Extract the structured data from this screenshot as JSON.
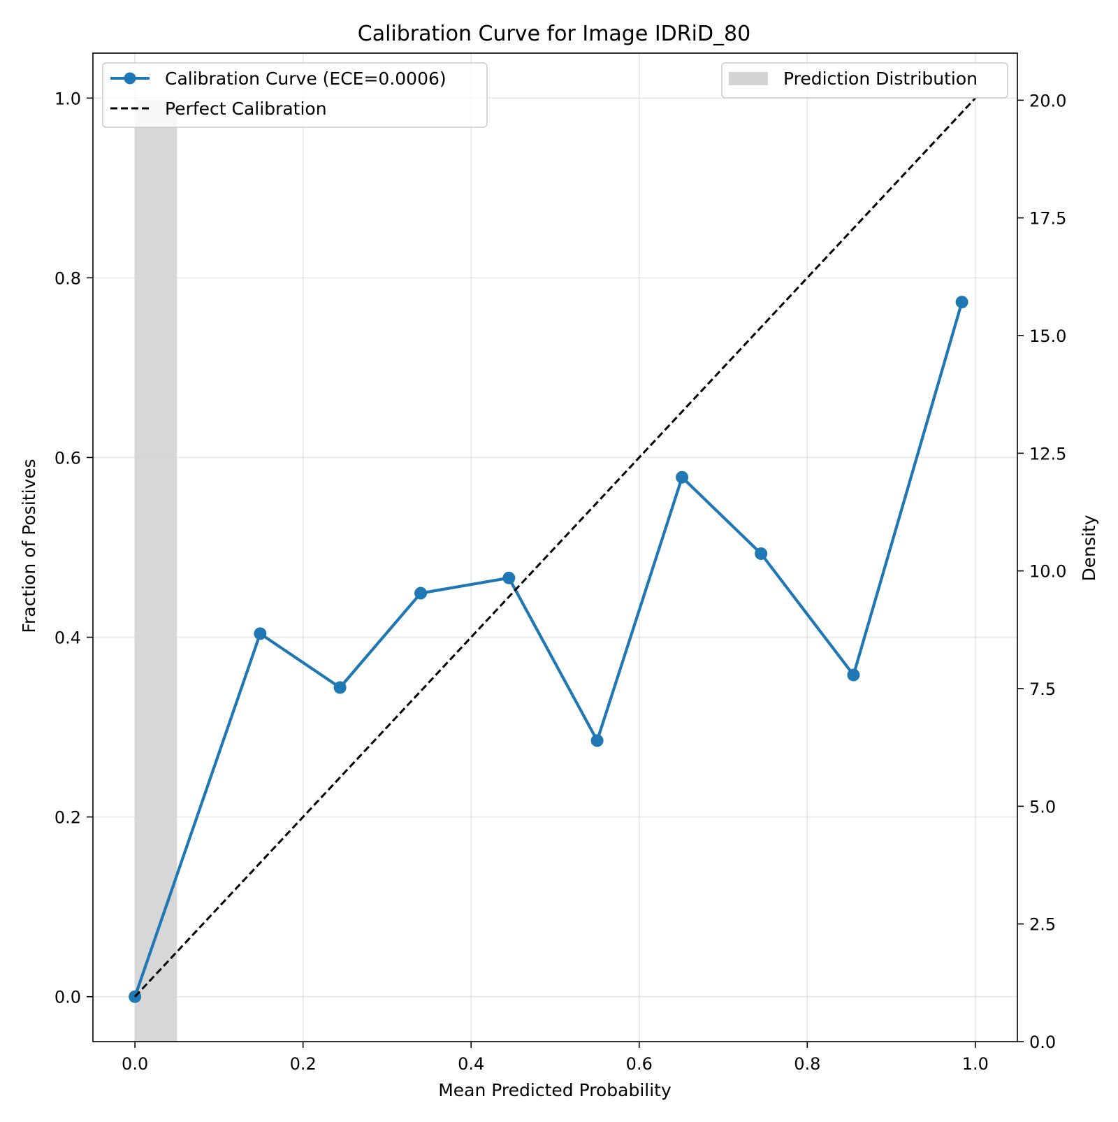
{
  "chart_data": {
    "type": "line",
    "title": "Calibration Curve for Image IDRiD_80",
    "xlabel": "Mean Predicted Probability",
    "ylabel": "Fraction of Positives",
    "y2label": "Density",
    "xlim": [
      -0.05,
      1.05
    ],
    "ylim": [
      -0.05,
      1.05
    ],
    "y2lim": [
      0.0,
      21.0
    ],
    "x_ticks": [
      0.0,
      0.2,
      0.4,
      0.6,
      0.8,
      1.0
    ],
    "x_tick_labels": [
      "0.0",
      "0.2",
      "0.4",
      "0.6",
      "0.8",
      "1.0"
    ],
    "y_ticks": [
      0.0,
      0.2,
      0.4,
      0.6,
      0.8,
      1.0
    ],
    "y_tick_labels": [
      "0.0",
      "0.2",
      "0.4",
      "0.6",
      "0.8",
      "1.0"
    ],
    "y2_ticks": [
      0.0,
      2.5,
      5.0,
      7.5,
      10.0,
      12.5,
      15.0,
      17.5,
      20.0
    ],
    "y2_tick_labels": [
      "0.0",
      "2.5",
      "5.0",
      "7.5",
      "10.0",
      "12.5",
      "15.0",
      "17.5",
      "20.0"
    ],
    "grid": true,
    "series": [
      {
        "name": "Calibration Curve (ECE=0.0006)",
        "color": "#1f77b4",
        "marker": "circle",
        "x": [
          0.0,
          0.149,
          0.244,
          0.34,
          0.445,
          0.55,
          0.651,
          0.745,
          0.855,
          0.984
        ],
        "y": [
          0.0,
          0.404,
          0.344,
          0.449,
          0.466,
          0.285,
          0.578,
          0.493,
          0.358,
          0.773
        ]
      },
      {
        "name": "Perfect Calibration",
        "color": "#000000",
        "style": "dashed",
        "x": [
          0.0,
          1.0
        ],
        "y": [
          0.0,
          1.0
        ]
      }
    ],
    "histogram": {
      "name": "Prediction Distribution",
      "color": "#d3d3d3",
      "axis": "right",
      "bins": [
        {
          "x0": 0.0,
          "x1": 0.05,
          "density": 20.0
        }
      ]
    },
    "legend_left_placement": "upper-left",
    "legend_right_placement": "upper-right"
  }
}
